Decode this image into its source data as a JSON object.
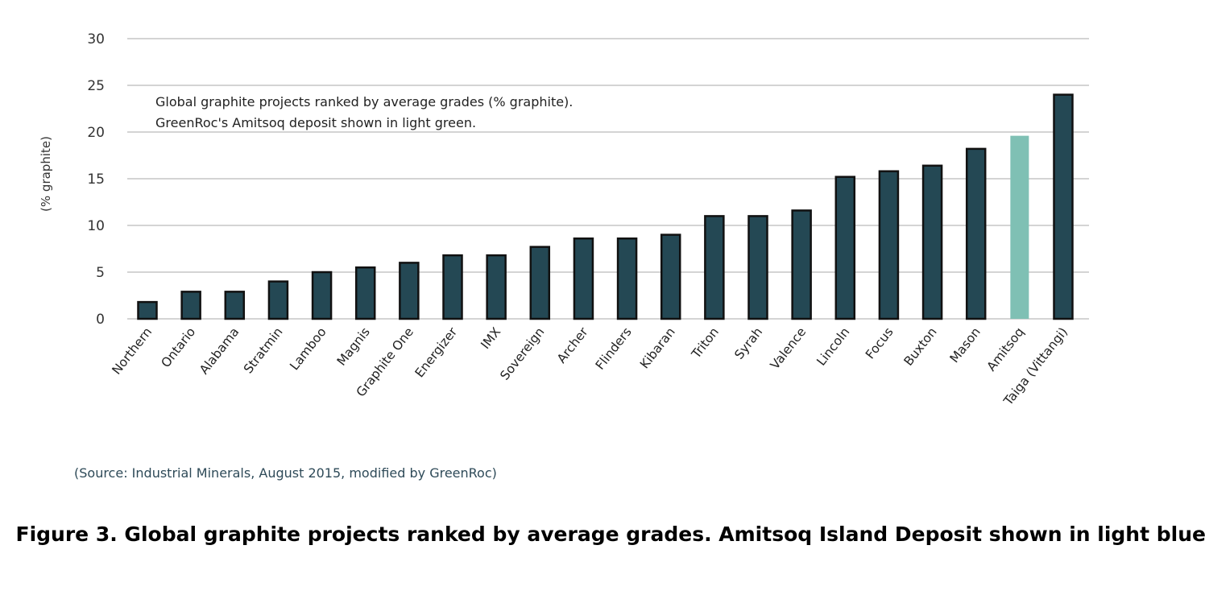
{
  "chart_data": {
    "type": "bar",
    "title": "",
    "annotation": [
      "Global graphite projects ranked by average grades (% graphite).",
      "GreenRoc's Amitsoq deposit shown in light green."
    ],
    "xlabel": "",
    "ylabel": "(% graphite)",
    "ylim": [
      0,
      30
    ],
    "yticks": [
      0,
      5,
      10,
      15,
      20,
      25,
      30
    ],
    "grid": true,
    "categories": [
      "Northern",
      "Ontario",
      "Alabama",
      "Stratmin",
      "Lamboo",
      "Magnis",
      "Graphite One",
      "Energizer",
      "IMX",
      "Sovereign",
      "Archer",
      "Flinders",
      "Kibaran",
      "Triton",
      "Syrah",
      "Valence",
      "Lincoln",
      "Focus",
      "Buxton",
      "Mason",
      "Amitsoq",
      "Taiga (Vittangi)"
    ],
    "values": [
      1.8,
      2.9,
      2.9,
      4.0,
      5.0,
      5.5,
      6.0,
      6.8,
      6.8,
      7.7,
      8.6,
      8.6,
      9.0,
      11.0,
      11.0,
      11.6,
      15.2,
      15.8,
      16.4,
      18.2,
      19.6,
      24.0
    ],
    "highlight_category": "Amitsoq",
    "colors": {
      "bar": "#244854",
      "highlight": "#7fc0b4",
      "border": "#111111",
      "grid": "#d4d4d4"
    }
  },
  "source": "(Source: Industrial Minerals, August 2015, modified by GreenRoc)",
  "caption": "Figure 3. Global graphite projects ranked by average grades.  Amitsoq Island Deposit shown in light blue."
}
